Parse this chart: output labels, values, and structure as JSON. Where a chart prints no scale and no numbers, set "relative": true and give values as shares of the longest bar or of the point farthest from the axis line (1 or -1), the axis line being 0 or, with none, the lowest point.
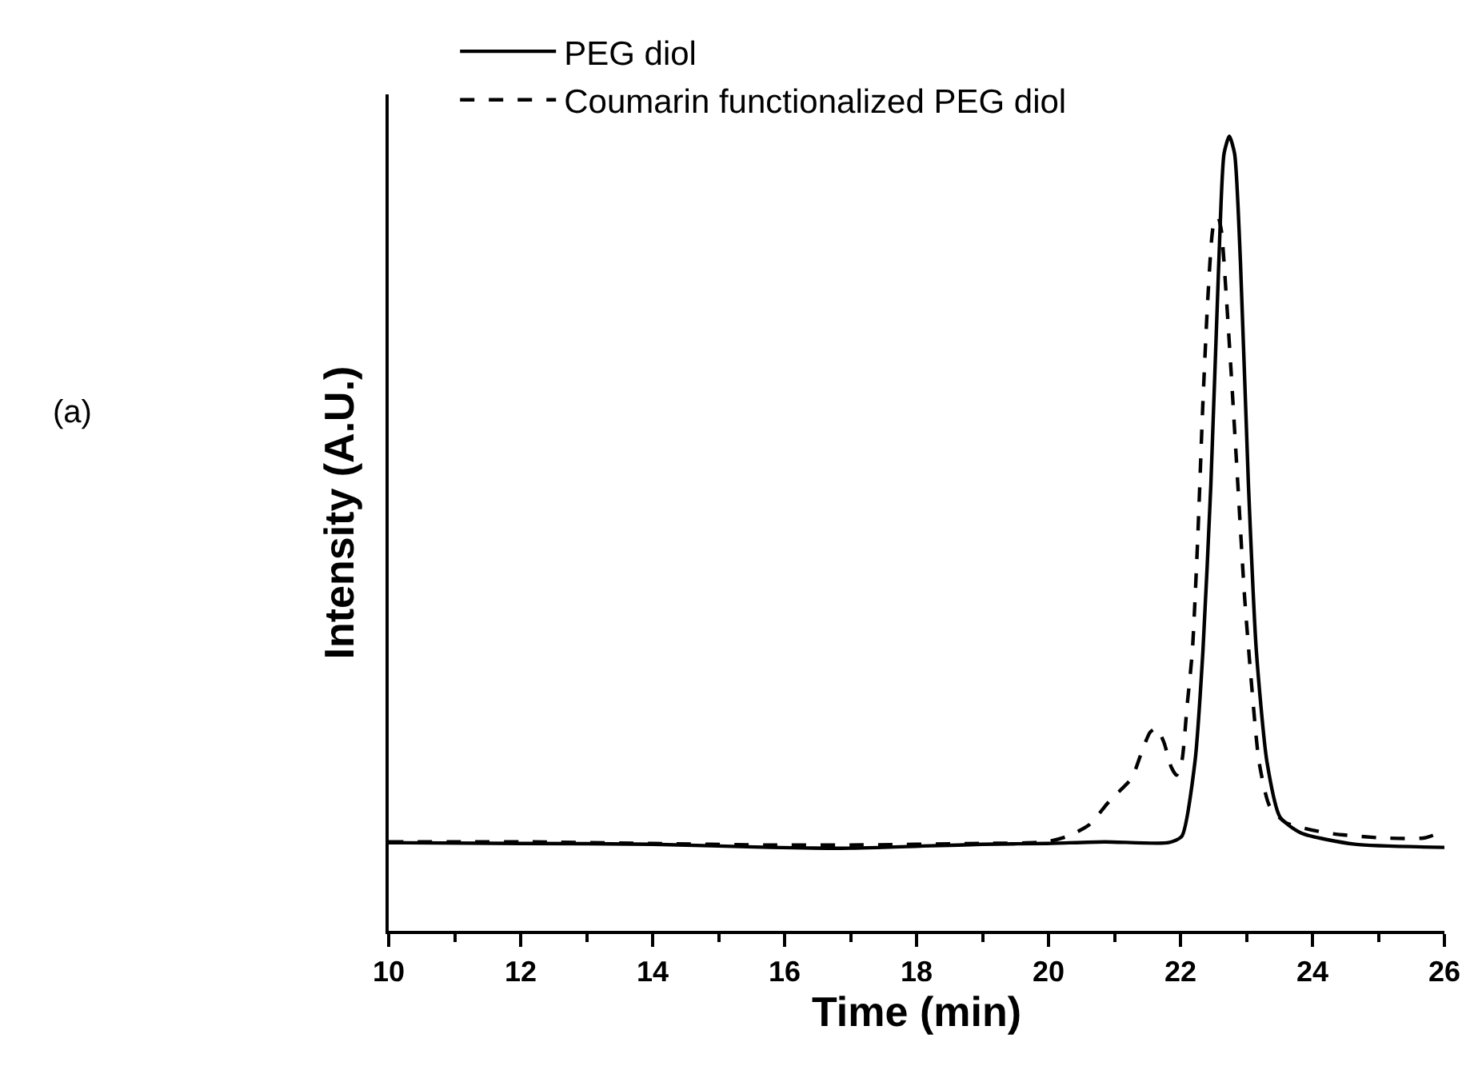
{
  "chart_data": {
    "type": "line",
    "relative": true,
    "xlabel": "Time (min)",
    "ylabel": "Intensity (A.U.)",
    "xlim": [
      10,
      26
    ],
    "xticks": [
      10,
      12,
      14,
      16,
      18,
      20,
      22,
      24,
      26
    ],
    "legend": "top left",
    "grid": false,
    "marker": "none",
    "annotations": [
      "(a)"
    ],
    "series": [
      {
        "name": "PEG diol",
        "color": "#000000",
        "line_style": "solid",
        "x": [
          10,
          12,
          14,
          15.78,
          17,
          19,
          19.97,
          20.85,
          21.82,
          22.02,
          22.22,
          22.34,
          22.46,
          22.58,
          22.66,
          22.74,
          22.82,
          22.91,
          23.03,
          23.15,
          23.31,
          23.51,
          23.83,
          24.64,
          26
        ],
        "values": [
          0.111,
          0.11,
          0.109,
          0.105,
          0.104,
          0.109,
          0.11,
          0.112,
          0.111,
          0.119,
          0.213,
          0.352,
          0.561,
          0.839,
          0.978,
          1,
          0.978,
          0.839,
          0.561,
          0.352,
          0.213,
          0.143,
          0.123,
          0.109,
          0.105
        ]
      },
      {
        "name": "Coumarin functionalized PEG diol",
        "color": "#000000",
        "line_style": "dashed",
        "x": [
          10,
          12,
          14,
          15.78,
          17,
          19,
          19.97,
          20.29,
          20.61,
          20.93,
          21.26,
          21.42,
          21.54,
          21.64,
          21.75,
          21.86,
          21.94,
          22.02,
          22.1,
          22.18,
          22.26,
          22.34,
          22.42,
          22.5,
          22.57,
          22.62,
          22.69,
          22.77,
          22.87,
          22.97,
          23.07,
          23.19,
          23.35,
          23.6,
          24.24,
          25.05,
          25.7,
          26
        ],
        "values": [
          0.112,
          0.112,
          0.11,
          0.108,
          0.108,
          0.11,
          0.112,
          0.119,
          0.133,
          0.164,
          0.192,
          0.227,
          0.25,
          0.255,
          0.237,
          0.206,
          0.196,
          0.213,
          0.283,
          0.352,
          0.491,
          0.665,
          0.804,
          0.888,
          0.898,
          0.881,
          0.804,
          0.7,
          0.561,
          0.422,
          0.317,
          0.213,
          0.157,
          0.136,
          0.123,
          0.117,
          0.117,
          0.126
        ]
      }
    ]
  }
}
